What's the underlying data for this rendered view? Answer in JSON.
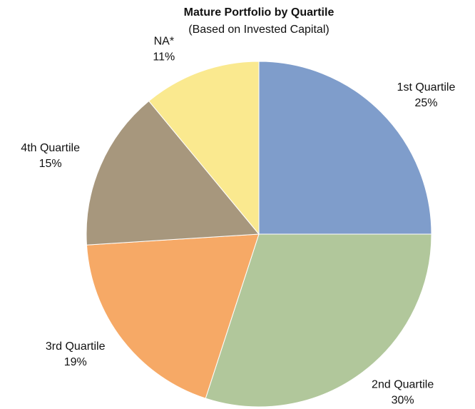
{
  "chart_data": {
    "type": "pie",
    "title": "Mature Portfolio by Quartile",
    "subtitle": "(Based on Invested Capital)",
    "categories": [
      "1st Quartile",
      "2nd Quartile",
      "3rd Quartile",
      "4th Quartile",
      "NA*"
    ],
    "values": [
      25,
      30,
      19,
      15,
      11
    ],
    "value_labels": [
      "25%",
      "30%",
      "19%",
      "15%",
      "11%"
    ],
    "colors": [
      "#7f9dcb",
      "#b1c79b",
      "#f6a966",
      "#a7977d",
      "#fae98f"
    ]
  }
}
